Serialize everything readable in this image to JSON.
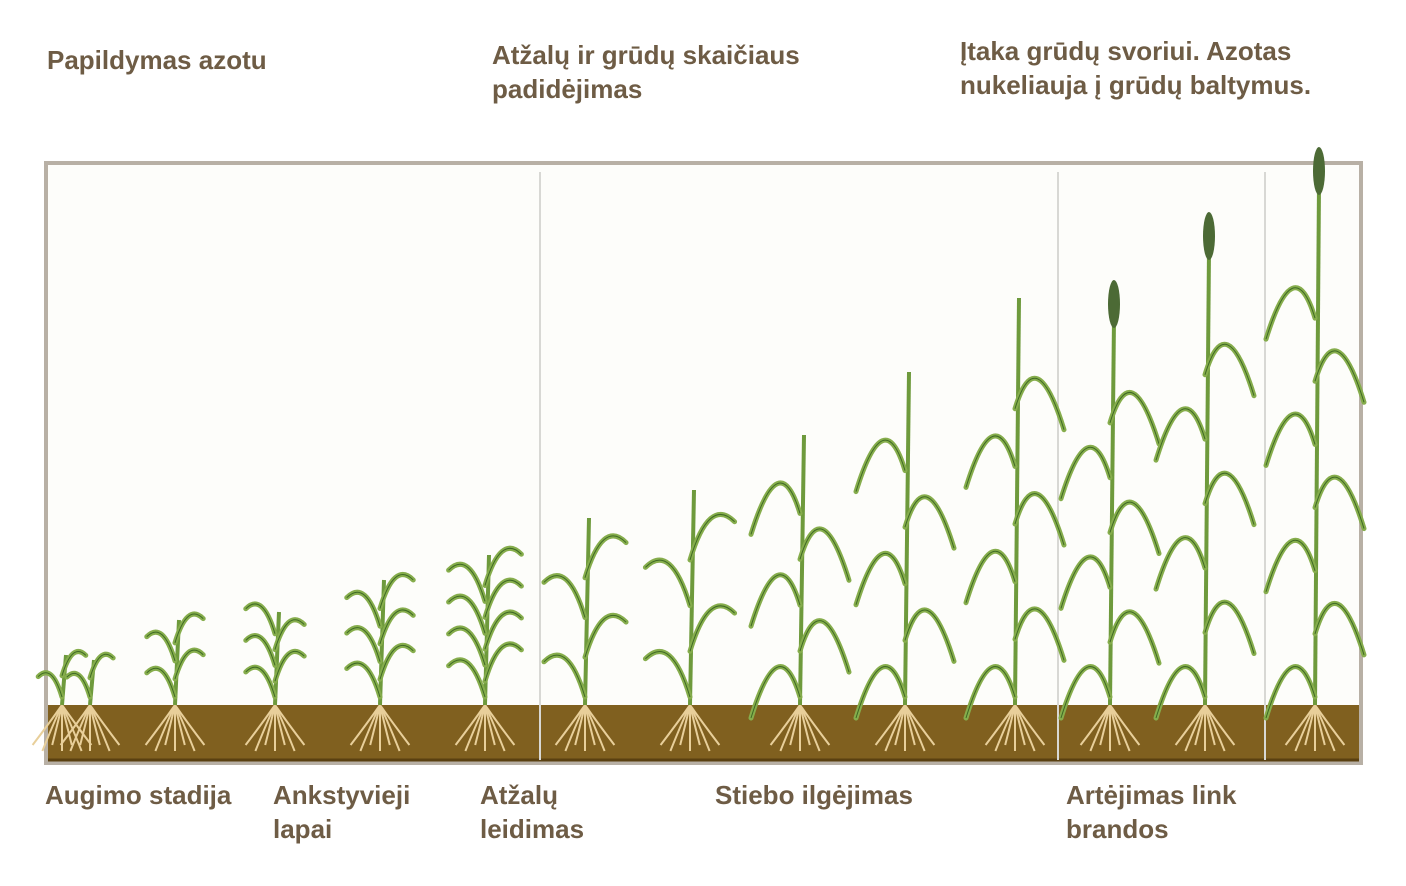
{
  "top_labels": [
    {
      "lines": [
        "Papildymas azotu"
      ]
    },
    {
      "lines": [
        "Atžalų ir grūdų skaičiaus",
        "padidėjimas"
      ]
    },
    {
      "lines": [
        "Įtaka grūdų svoriui. Azotas",
        "nukeliauja į grūdų baltymus."
      ]
    }
  ],
  "stage_labels": [
    {
      "lines": [
        "Augimo stadija"
      ]
    },
    {
      "lines": [
        "Ankstyvieji",
        "lapai"
      ]
    },
    {
      "lines": [
        "Atžalų",
        "leidimas"
      ]
    },
    {
      "lines": [
        "Stiebo ilgėjimas"
      ]
    },
    {
      "lines": [
        "Artėjimas link",
        "brandos"
      ]
    }
  ]
}
